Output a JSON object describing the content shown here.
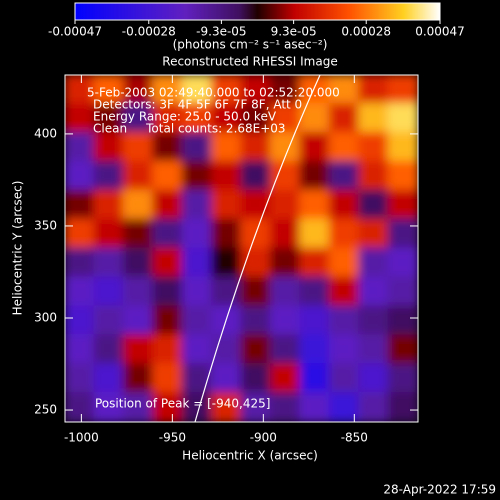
{
  "chart_data": {
    "type": "heatmap",
    "title": "Reconstructed RHESSI Image",
    "x_label": "Heliocentric X (arcsec)",
    "y_label": "Heliocentric Y (arcsec)",
    "colorbar_label": "(photons cm⁻² s⁻¹ asec⁻²)",
    "xlim": [
      -1009,
      -815
    ],
    "ylim": [
      243.5,
      432
    ],
    "xticks": [
      -1000,
      -950,
      -900,
      -850
    ],
    "yticks": [
      250,
      300,
      350,
      400
    ],
    "zlim": [
      -0.00047,
      0.00047
    ],
    "zticks": [
      -0.00047,
      -0.00028,
      {
        "value": -9.3e-05,
        "label": "-9.3e-05"
      },
      {
        "value": 9.3e-05,
        "label": "9.3e-05"
      },
      0.00028,
      0.00047
    ],
    "annotations": [
      "5-Feb-2003 02:49:40.000 to 02:52:20.000",
      "Detectors: 3F 4F 5F 6F 7F 8F, Att 0",
      "Energy Range: 25.0 - 50.0 keV",
      "Clean     Total counts: 2.68E+03"
    ],
    "peak_label": "Position of Peak = [-940,425]",
    "timestamp": "28-Apr-2022 17:59",
    "values": [
      [
        0.00015,
        0.00025,
        8e-05,
        0.0003,
        0.0004,
        0.0002,
        0.0001,
        5e-05,
        0.00025,
        0.0003,
        0.00015,
        0.0002
      ],
      [
        0.0001,
        5e-05,
        -0.0001,
        0.00015,
        0.0002,
        0.0001,
        5e-05,
        0.0002,
        0.0003,
        0.00015,
        0.00035,
        0.0004
      ],
      [
        -0.00015,
        0.0001,
        0.0002,
        5e-05,
        -0.0001,
        0.00025,
        0.00015,
        0.0003,
        0.0001,
        0.00025,
        0.0002,
        0.00035
      ],
      [
        -0.0002,
        -0.0001,
        0.00015,
        0.00025,
        5e-05,
        0.0001,
        -5e-05,
        0.0002,
        5e-05,
        -0.0001,
        0.00015,
        0.00025
      ],
      [
        5e-05,
        0.00015,
        0.0003,
        0.0001,
        -0.00015,
        0.00015,
        0.0001,
        0.00015,
        0.00025,
        0.0001,
        -5e-05,
        0.0001
      ],
      [
        0.0002,
        0.0001,
        5e-05,
        -0.0001,
        -0.0002,
        5e-05,
        0.0002,
        0.0001,
        0.00035,
        0.0002,
        0.00015,
        -0.0001
      ],
      [
        -0.0001,
        -0.00015,
        -5e-05,
        0.0001,
        -0.00025,
        0,
        0.00015,
        5e-05,
        0.00015,
        0.00025,
        -0.00015,
        -0.0002
      ],
      [
        -0.0002,
        -0.00025,
        -0.00015,
        -5e-05,
        -0.0002,
        -0.0001,
        5e-05,
        -0.00015,
        -0.0001,
        0.0001,
        -0.0002,
        -0.00015
      ],
      [
        -0.00025,
        -0.00015,
        -0.0002,
        5e-05,
        -0.00015,
        -0.0002,
        -0.0001,
        -0.0002,
        -0.00025,
        -0.00015,
        -0.0001,
        -5e-05
      ],
      [
        -0.0002,
        -0.0001,
        0.0001,
        0.00015,
        -0.0002,
        -0.00015,
        5e-05,
        -0.0001,
        -0.0003,
        -0.0002,
        -0.00015,
        5e-05
      ],
      [
        -0.00015,
        -0.00025,
        5e-05,
        0.0002,
        -0.0001,
        -0.0002,
        -5e-05,
        0.0001,
        -0.00035,
        -0.00015,
        -0.00025,
        -0.0001
      ],
      [
        -0.0001,
        -0.0002,
        -0.00015,
        0.0001,
        -5e-05,
        0.00015,
        -0.00015,
        -0.0001,
        -0.0002,
        -0.0003,
        -0.00015,
        -5e-05
      ]
    ]
  }
}
